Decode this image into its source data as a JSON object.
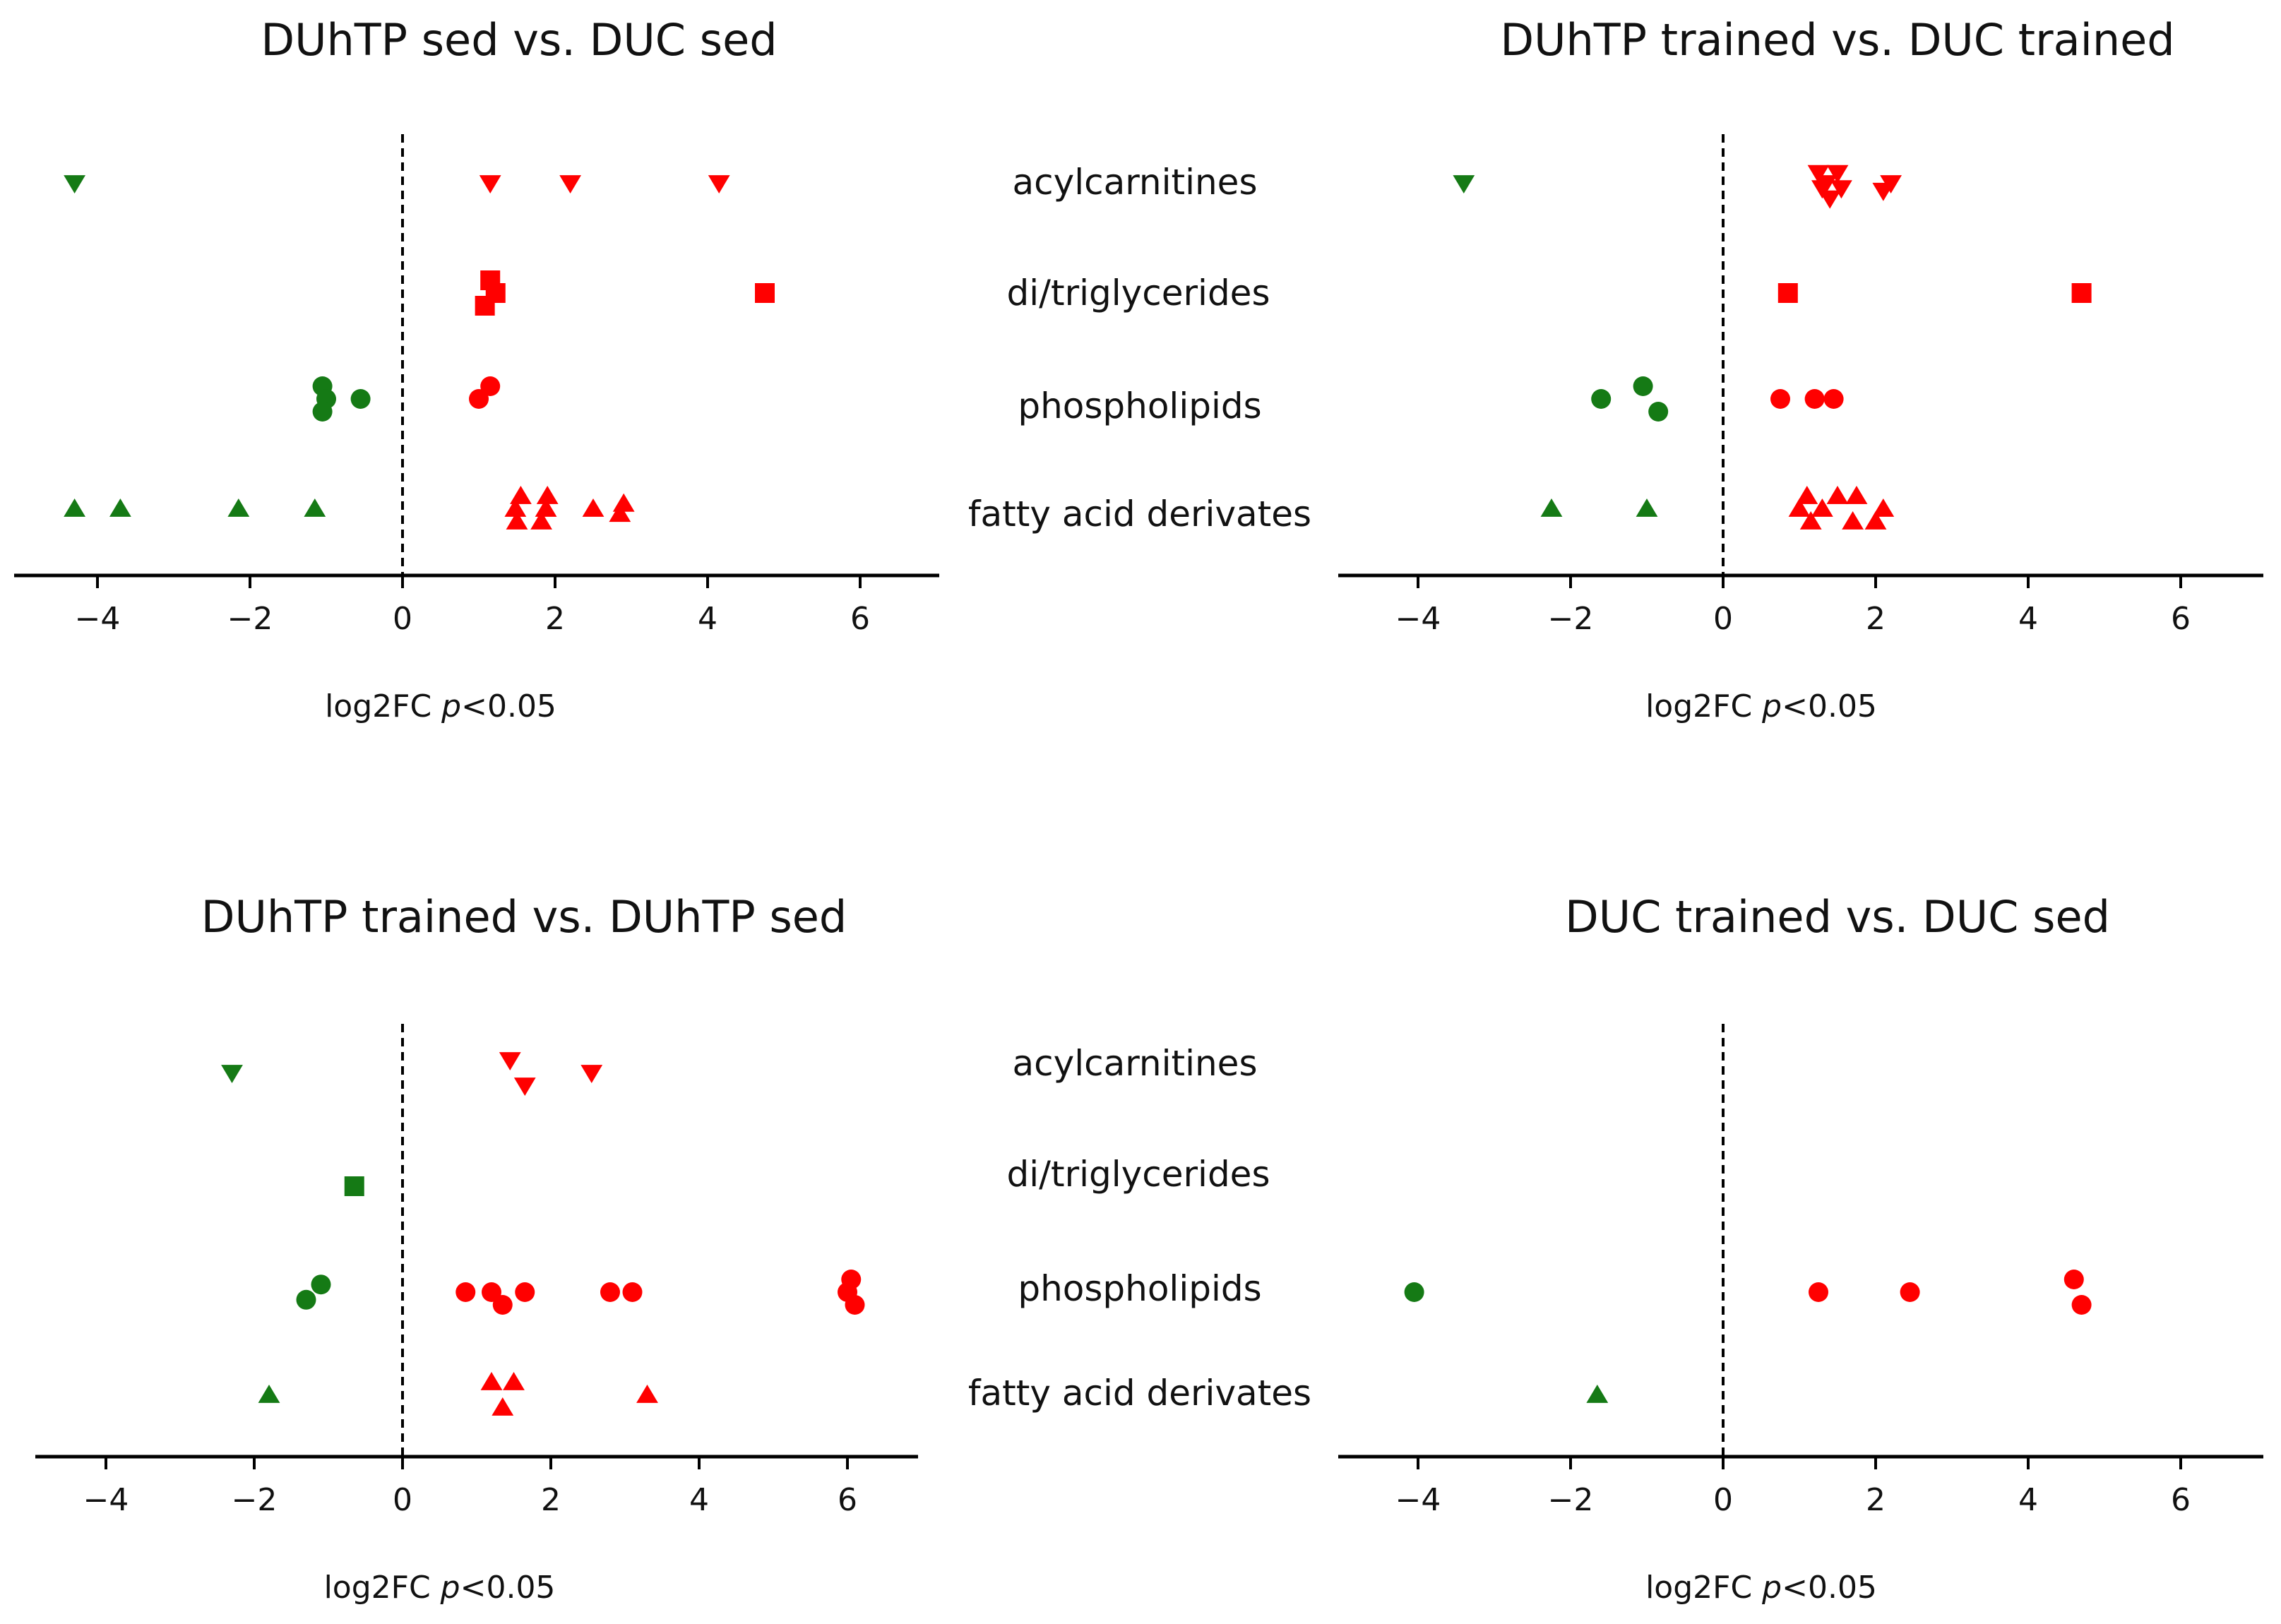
{
  "chart_data": [
    {
      "type": "scatter",
      "title": "DUhTP sed vs. DUC sed",
      "xlabel": {
        "main": "log2FC ",
        "italic": "p",
        "rest": "<0.05"
      },
      "xlim": [
        -5,
        7
      ],
      "xticks": [
        -4,
        -2,
        0,
        2,
        4,
        6
      ],
      "series": [
        {
          "name": "acylcarnitines",
          "marker": "triangle-down",
          "points": [
            [
              -4.3,
              0
            ],
            [
              1.15,
              0
            ],
            [
              2.2,
              0
            ],
            [
              4.15,
              0
            ]
          ]
        },
        {
          "name": "di/triglycerides",
          "marker": "square",
          "points": [
            [
              1.15,
              -0.25
            ],
            [
              1.22,
              0
            ],
            [
              1.08,
              0.25
            ],
            [
              4.75,
              0
            ]
          ]
        },
        {
          "name": "phospholipids",
          "marker": "circle",
          "points": [
            [
              -1.05,
              -0.25
            ],
            [
              -1.0,
              0
            ],
            [
              -0.55,
              0
            ],
            [
              -1.05,
              0.25
            ],
            [
              1.15,
              -0.25
            ],
            [
              1.0,
              0
            ]
          ]
        },
        {
          "name": "fatty acid derivates",
          "marker": "triangle-up",
          "points": [
            [
              -4.3,
              0
            ],
            [
              -3.7,
              0
            ],
            [
              -2.15,
              0
            ],
            [
              -1.15,
              0
            ],
            [
              1.55,
              -0.25
            ],
            [
              1.9,
              -0.25
            ],
            [
              1.48,
              0
            ],
            [
              1.88,
              0
            ],
            [
              2.5,
              0
            ],
            [
              2.9,
              -0.1
            ],
            [
              2.85,
              0.1
            ],
            [
              1.5,
              0.25
            ],
            [
              1.82,
              0.25
            ]
          ]
        }
      ]
    },
    {
      "type": "scatter",
      "title": "DUhTP trained vs. DUC trained",
      "xlabel": {
        "main": "log2FC ",
        "italic": "p",
        "rest": "<0.05"
      },
      "xlim": [
        -5,
        7
      ],
      "xticks": [
        -4,
        -2,
        0,
        2,
        4,
        6
      ],
      "series": [
        {
          "name": "acylcarnitines",
          "marker": "triangle-down",
          "points": [
            [
              -3.4,
              0
            ],
            [
              1.25,
              -0.2
            ],
            [
              1.5,
              -0.2
            ],
            [
              1.35,
              0
            ],
            [
              1.3,
              0.1
            ],
            [
              1.55,
              0.1
            ],
            [
              1.4,
              0.3
            ],
            [
              2.2,
              0
            ],
            [
              2.1,
              0.15
            ]
          ]
        },
        {
          "name": "di/triglycerides",
          "marker": "square",
          "points": [
            [
              0.85,
              0
            ],
            [
              4.7,
              0
            ]
          ]
        },
        {
          "name": "phospholipids",
          "marker": "circle",
          "points": [
            [
              -1.05,
              -0.25
            ],
            [
              -1.6,
              0
            ],
            [
              -0.85,
              0.25
            ],
            [
              0.75,
              0
            ],
            [
              1.2,
              0
            ],
            [
              1.45,
              0
            ]
          ]
        },
        {
          "name": "fatty acid derivates",
          "marker": "triangle-up",
          "points": [
            [
              -2.25,
              0
            ],
            [
              -1.0,
              0
            ],
            [
              1.1,
              -0.25
            ],
            [
              1.5,
              -0.25
            ],
            [
              1.75,
              -0.25
            ],
            [
              1.0,
              0
            ],
            [
              1.3,
              0
            ],
            [
              2.1,
              0
            ],
            [
              1.15,
              0.25
            ],
            [
              1.7,
              0.25
            ],
            [
              2.0,
              0.25
            ]
          ]
        }
      ]
    },
    {
      "type": "scatter",
      "title": "DUhTP trained vs. DUhTP sed",
      "xlabel": {
        "main": "log2FC ",
        "italic": "p",
        "rest": "<0.05"
      },
      "xlim": [
        -5,
        7
      ],
      "xticks": [
        -4,
        -2,
        0,
        2,
        4,
        6
      ],
      "series": [
        {
          "name": "acylcarnitines",
          "marker": "triangle-down",
          "points": [
            [
              -2.3,
              0
            ],
            [
              1.45,
              -0.25
            ],
            [
              2.55,
              0
            ],
            [
              1.65,
              0.25
            ]
          ]
        },
        {
          "name": "di/triglycerides",
          "marker": "square",
          "points": [
            [
              -0.65,
              0
            ]
          ]
        },
        {
          "name": "phospholipids",
          "marker": "circle",
          "points": [
            [
              -1.1,
              -0.15
            ],
            [
              -1.3,
              0.15
            ],
            [
              0.85,
              0
            ],
            [
              1.2,
              0
            ],
            [
              1.65,
              0
            ],
            [
              1.35,
              0.25
            ],
            [
              2.8,
              0
            ],
            [
              3.1,
              0
            ],
            [
              6.05,
              -0.25
            ],
            [
              6.0,
              0
            ],
            [
              6.1,
              0.25
            ]
          ]
        },
        {
          "name": "fatty acid derivates",
          "marker": "triangle-up",
          "points": [
            [
              -1.8,
              0
            ],
            [
              1.2,
              -0.25
            ],
            [
              1.5,
              -0.25
            ],
            [
              3.3,
              0
            ],
            [
              1.35,
              0.25
            ]
          ]
        }
      ]
    },
    {
      "type": "scatter",
      "title": "DUC trained vs. DUC sed",
      "xlabel": {
        "main": "log2FC ",
        "italic": "p",
        "rest": "<0.05"
      },
      "xlim": [
        -5,
        7
      ],
      "xticks": [
        -4,
        -2,
        0,
        2,
        4,
        6
      ],
      "series": [
        {
          "name": "acylcarnitines",
          "marker": "triangle-down",
          "points": []
        },
        {
          "name": "di/triglycerides",
          "marker": "square",
          "points": []
        },
        {
          "name": "phospholipids",
          "marker": "circle",
          "points": [
            [
              -4.05,
              0
            ],
            [
              1.25,
              0
            ],
            [
              2.45,
              0
            ],
            [
              4.6,
              -0.25
            ],
            [
              4.7,
              0.25
            ]
          ]
        },
        {
          "name": "fatty acid derivates",
          "marker": "triangle-up",
          "points": [
            [
              -1.65,
              0
            ]
          ]
        }
      ]
    }
  ],
  "categories": {
    "top": [
      "acylcarnitines",
      "di/triglycerides",
      "phospholipids",
      "fatty acid derivates"
    ],
    "bottom": [
      "acylcarnitines",
      "di/triglycerides",
      "phospholipids",
      "fatty acid derivates"
    ]
  },
  "colors": {
    "negative": "#157a15",
    "positive": "#ff0000",
    "axis": "#000000"
  }
}
